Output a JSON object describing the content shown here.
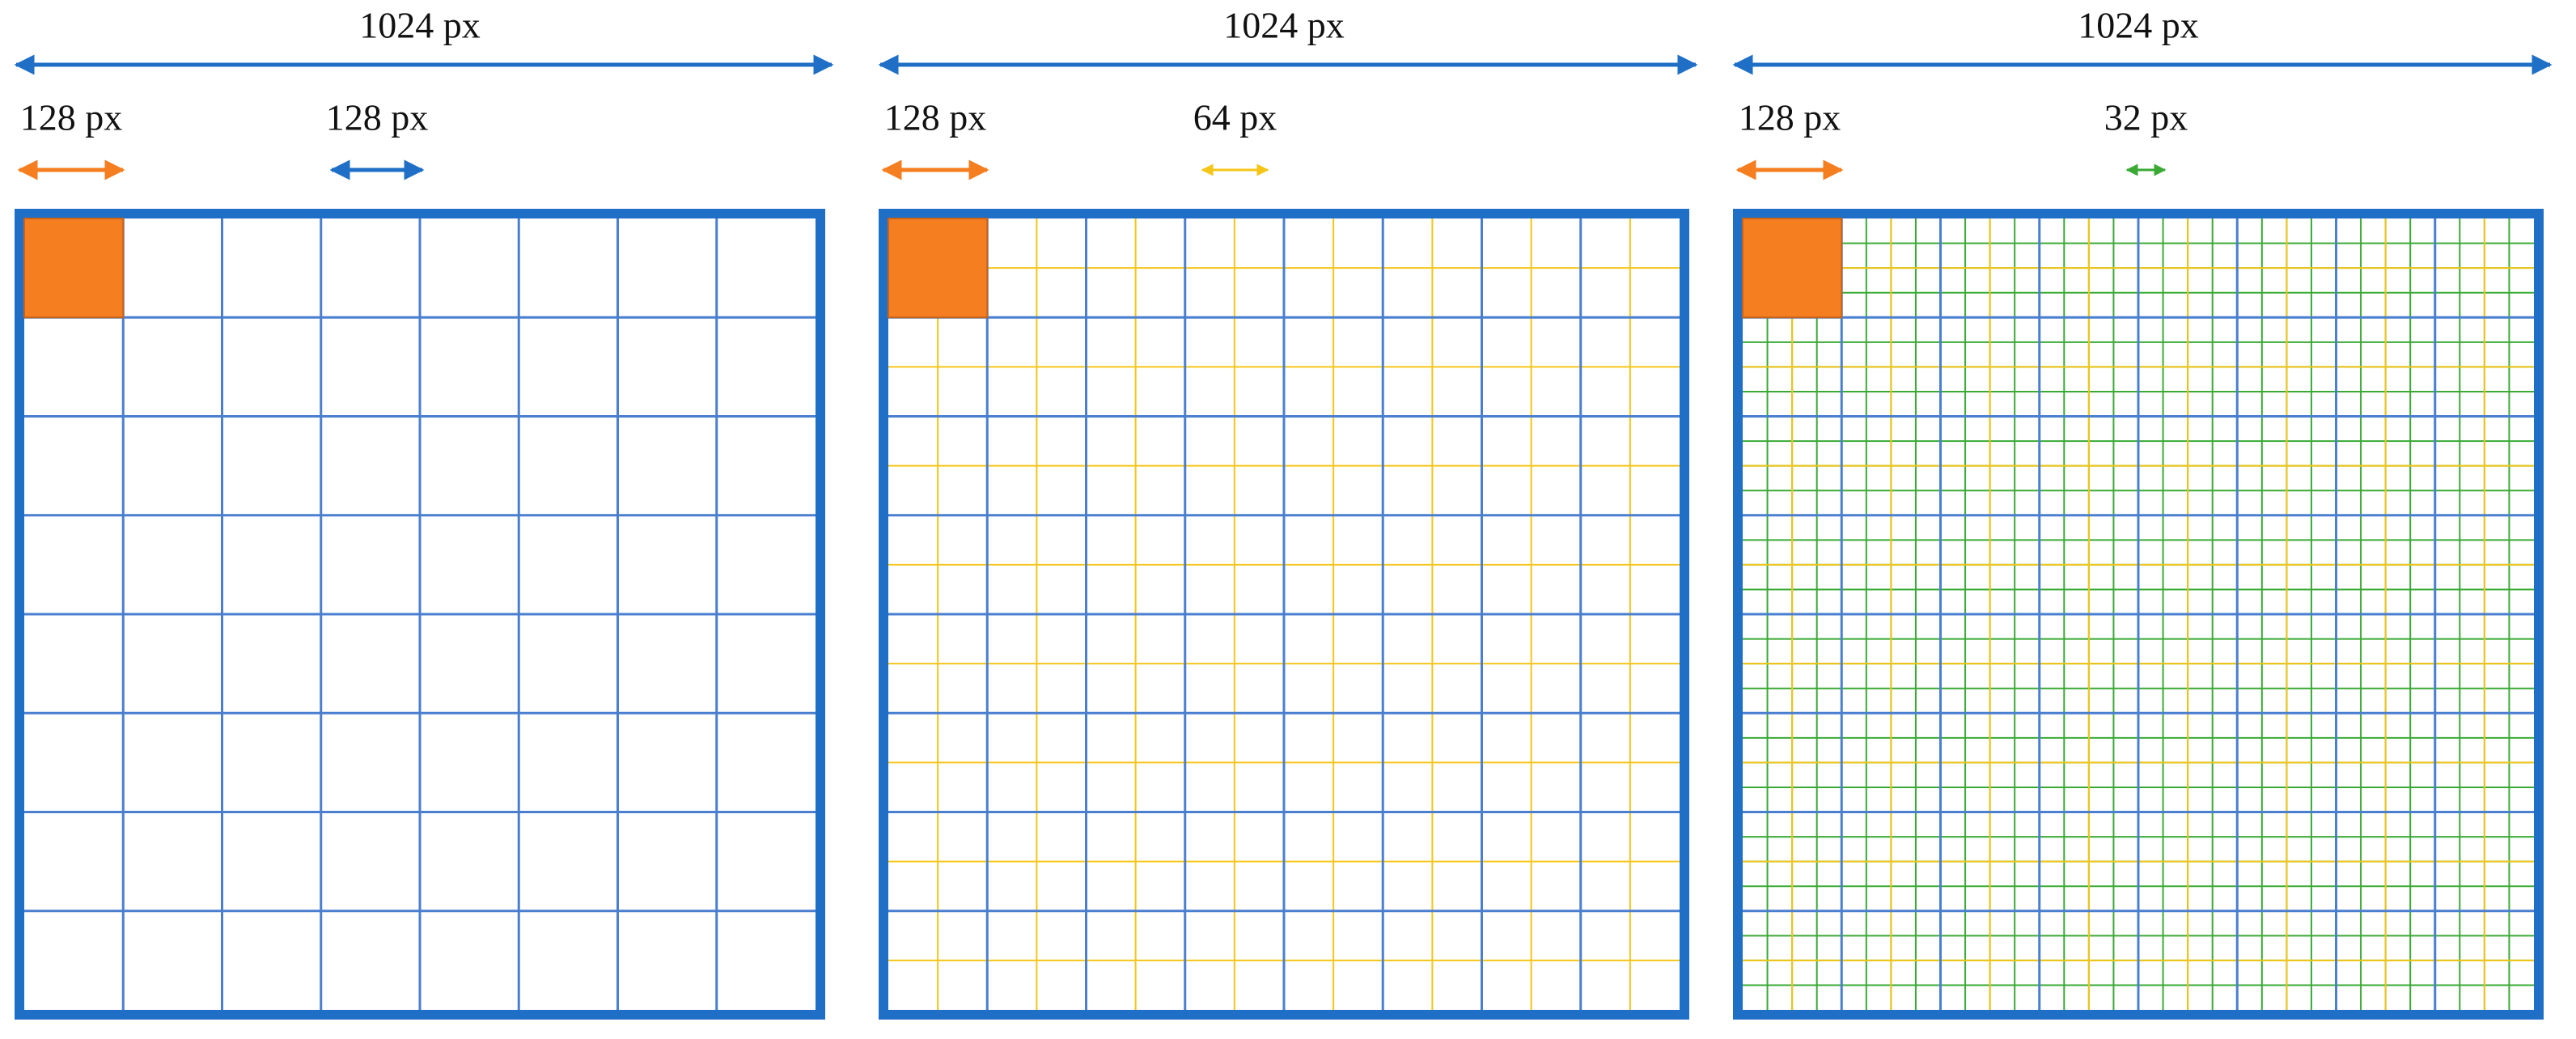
{
  "panels": [
    {
      "width_label": "1024 px",
      "patch_label": "128 px",
      "step_label": "128 px"
    },
    {
      "width_label": "1024 px",
      "patch_label": "128 px",
      "step_label": "64 px"
    },
    {
      "width_label": "1024 px",
      "patch_label": "128 px",
      "step_label": "32 px"
    }
  ]
}
